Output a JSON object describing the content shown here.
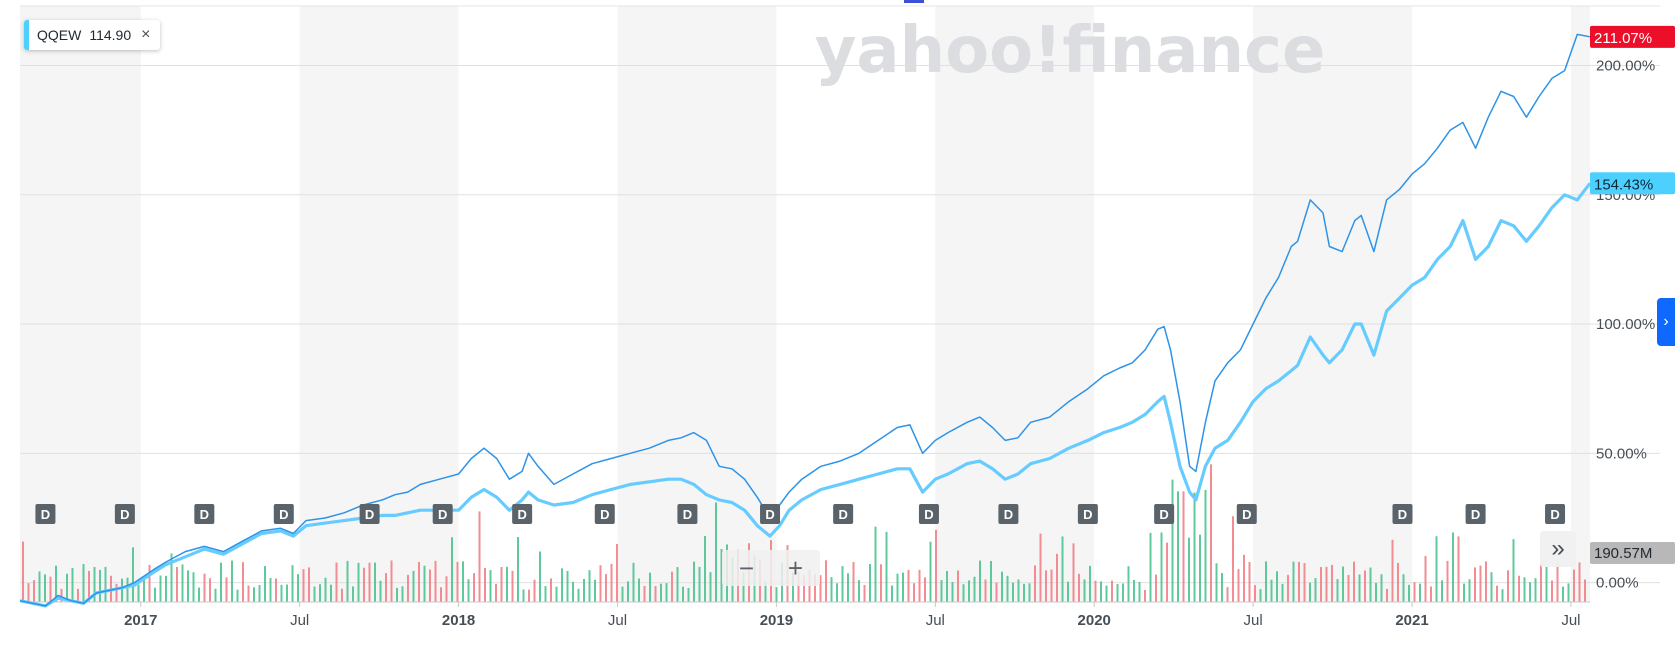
{
  "legend": {
    "symbol": "QQEW",
    "value": "114.90",
    "close_glyph": "×"
  },
  "watermark": "yahoo!finance",
  "colors": {
    "series_primary": "#2d93e8",
    "series_secondary": "#66ccff",
    "badge_primary": "#eb0f29",
    "badge_secondary": "#4ed0ff",
    "vol_up": "#43c08a",
    "vol_down": "#f07a80",
    "shade": "#f5f5f5",
    "dividend_badge": "#5b636a"
  },
  "controls": {
    "zoom_out": "−",
    "zoom_in": "+",
    "next_panel": "›",
    "expand": "»"
  },
  "chart_data": {
    "type": "line",
    "y_tick_labels": [
      "0.00%",
      "50.00%",
      "100.00%",
      "150.00%",
      "200.00%"
    ],
    "y_ticks": [
      0,
      50,
      100,
      150,
      200
    ],
    "ylim": [
      -7.5,
      223
    ],
    "x_tick_labels": [
      {
        "label": "2017",
        "t": 2016.92,
        "bold": true
      },
      {
        "label": "Jul",
        "t": 2017.42,
        "bold": false
      },
      {
        "label": "2018",
        "t": 2017.92,
        "bold": true
      },
      {
        "label": "Jul",
        "t": 2018.42,
        "bold": false
      },
      {
        "label": "2019",
        "t": 2018.92,
        "bold": true
      },
      {
        "label": "Jul",
        "t": 2019.42,
        "bold": false
      },
      {
        "label": "2020",
        "t": 2019.92,
        "bold": true
      },
      {
        "label": "Jul",
        "t": 2020.42,
        "bold": false
      },
      {
        "label": "2021",
        "t": 2020.92,
        "bold": true
      },
      {
        "label": "Jul",
        "t": 2021.42,
        "bold": false
      }
    ],
    "xlim": [
      2016.54,
      2021.48
    ],
    "grid": true,
    "last_value_badges": [
      {
        "series": "primary",
        "label": "211.07%"
      },
      {
        "series": "secondary",
        "label": "154.43%"
      }
    ],
    "volume_badge": "190.57M",
    "dividend_marker_label": "D",
    "dividend_markers": [
      2016.62,
      2016.87,
      2017.12,
      2017.37,
      2017.64,
      2017.87,
      2018.12,
      2018.38,
      2018.64,
      2018.9,
      2019.13,
      2019.4,
      2019.65,
      2019.9,
      2020.14,
      2020.4,
      2020.89,
      2021.12,
      2021.37
    ],
    "series": [
      {
        "id": "primary",
        "points": [
          [
            2016.54,
            -7
          ],
          [
            2016.58,
            -8
          ],
          [
            2016.62,
            -9
          ],
          [
            2016.66,
            -5
          ],
          [
            2016.7,
            -7
          ],
          [
            2016.74,
            -8
          ],
          [
            2016.78,
            -4
          ],
          [
            2016.82,
            -3
          ],
          [
            2016.86,
            -2
          ],
          [
            2016.9,
            0
          ],
          [
            2016.96,
            5
          ],
          [
            2017.0,
            8
          ],
          [
            2017.06,
            12
          ],
          [
            2017.12,
            14
          ],
          [
            2017.18,
            12
          ],
          [
            2017.24,
            16
          ],
          [
            2017.3,
            20
          ],
          [
            2017.36,
            21
          ],
          [
            2017.4,
            19
          ],
          [
            2017.44,
            24
          ],
          [
            2017.5,
            25
          ],
          [
            2017.56,
            27
          ],
          [
            2017.62,
            30
          ],
          [
            2017.68,
            32
          ],
          [
            2017.72,
            34
          ],
          [
            2017.76,
            35
          ],
          [
            2017.8,
            38
          ],
          [
            2017.86,
            40
          ],
          [
            2017.92,
            42
          ],
          [
            2017.96,
            48
          ],
          [
            2018.0,
            52
          ],
          [
            2018.04,
            48
          ],
          [
            2018.08,
            40
          ],
          [
            2018.12,
            43
          ],
          [
            2018.14,
            50
          ],
          [
            2018.17,
            45
          ],
          [
            2018.22,
            38
          ],
          [
            2018.28,
            42
          ],
          [
            2018.34,
            46
          ],
          [
            2018.4,
            48
          ],
          [
            2018.46,
            50
          ],
          [
            2018.52,
            52
          ],
          [
            2018.58,
            55
          ],
          [
            2018.62,
            56
          ],
          [
            2018.66,
            58
          ],
          [
            2018.7,
            55
          ],
          [
            2018.74,
            45
          ],
          [
            2018.78,
            44
          ],
          [
            2018.82,
            40
          ],
          [
            2018.86,
            33
          ],
          [
            2018.9,
            25
          ],
          [
            2018.93,
            30
          ],
          [
            2018.96,
            35
          ],
          [
            2019.0,
            40
          ],
          [
            2019.06,
            45
          ],
          [
            2019.12,
            47
          ],
          [
            2019.18,
            50
          ],
          [
            2019.24,
            55
          ],
          [
            2019.3,
            60
          ],
          [
            2019.34,
            61
          ],
          [
            2019.38,
            50
          ],
          [
            2019.42,
            55
          ],
          [
            2019.46,
            58
          ],
          [
            2019.52,
            62
          ],
          [
            2019.56,
            64
          ],
          [
            2019.6,
            60
          ],
          [
            2019.64,
            55
          ],
          [
            2019.68,
            56
          ],
          [
            2019.72,
            62
          ],
          [
            2019.78,
            64
          ],
          [
            2019.84,
            70
          ],
          [
            2019.9,
            75
          ],
          [
            2019.95,
            80
          ],
          [
            2020.0,
            83
          ],
          [
            2020.04,
            85
          ],
          [
            2020.08,
            90
          ],
          [
            2020.12,
            98
          ],
          [
            2020.14,
            99
          ],
          [
            2020.16,
            90
          ],
          [
            2020.19,
            70
          ],
          [
            2020.22,
            45
          ],
          [
            2020.24,
            43
          ],
          [
            2020.27,
            62
          ],
          [
            2020.3,
            78
          ],
          [
            2020.34,
            85
          ],
          [
            2020.38,
            90
          ],
          [
            2020.42,
            100
          ],
          [
            2020.46,
            110
          ],
          [
            2020.5,
            118
          ],
          [
            2020.54,
            130
          ],
          [
            2020.56,
            132
          ],
          [
            2020.6,
            148
          ],
          [
            2020.64,
            143
          ],
          [
            2020.66,
            130
          ],
          [
            2020.7,
            128
          ],
          [
            2020.74,
            140
          ],
          [
            2020.76,
            142
          ],
          [
            2020.8,
            128
          ],
          [
            2020.84,
            148
          ],
          [
            2020.88,
            152
          ],
          [
            2020.92,
            158
          ],
          [
            2020.96,
            162
          ],
          [
            2021.0,
            168
          ],
          [
            2021.04,
            175
          ],
          [
            2021.08,
            178
          ],
          [
            2021.12,
            168
          ],
          [
            2021.16,
            180
          ],
          [
            2021.2,
            190
          ],
          [
            2021.24,
            188
          ],
          [
            2021.28,
            180
          ],
          [
            2021.32,
            188
          ],
          [
            2021.36,
            195
          ],
          [
            2021.4,
            198
          ],
          [
            2021.44,
            212
          ],
          [
            2021.48,
            211.07
          ]
        ]
      },
      {
        "id": "secondary",
        "points": [
          [
            2016.54,
            -7
          ],
          [
            2016.58,
            -8
          ],
          [
            2016.62,
            -9
          ],
          [
            2016.66,
            -6
          ],
          [
            2016.7,
            -7
          ],
          [
            2016.74,
            -8
          ],
          [
            2016.78,
            -4
          ],
          [
            2016.82,
            -3
          ],
          [
            2016.86,
            -2
          ],
          [
            2016.9,
            -1
          ],
          [
            2016.96,
            4
          ],
          [
            2017.0,
            7
          ],
          [
            2017.06,
            10
          ],
          [
            2017.12,
            13
          ],
          [
            2017.18,
            11
          ],
          [
            2017.24,
            15
          ],
          [
            2017.3,
            19
          ],
          [
            2017.36,
            20
          ],
          [
            2017.4,
            18
          ],
          [
            2017.44,
            22
          ],
          [
            2017.5,
            23
          ],
          [
            2017.56,
            24
          ],
          [
            2017.62,
            25
          ],
          [
            2017.68,
            26
          ],
          [
            2017.72,
            26
          ],
          [
            2017.76,
            27
          ],
          [
            2017.8,
            28
          ],
          [
            2017.86,
            28
          ],
          [
            2017.92,
            28
          ],
          [
            2017.96,
            33
          ],
          [
            2018.0,
            36
          ],
          [
            2018.04,
            33
          ],
          [
            2018.08,
            28
          ],
          [
            2018.12,
            32
          ],
          [
            2018.14,
            35
          ],
          [
            2018.17,
            32
          ],
          [
            2018.22,
            30
          ],
          [
            2018.28,
            31
          ],
          [
            2018.34,
            34
          ],
          [
            2018.4,
            36
          ],
          [
            2018.46,
            38
          ],
          [
            2018.52,
            39
          ],
          [
            2018.58,
            40
          ],
          [
            2018.62,
            40
          ],
          [
            2018.66,
            38
          ],
          [
            2018.7,
            34
          ],
          [
            2018.74,
            32
          ],
          [
            2018.78,
            31
          ],
          [
            2018.82,
            28
          ],
          [
            2018.86,
            22
          ],
          [
            2018.9,
            18
          ],
          [
            2018.93,
            22
          ],
          [
            2018.96,
            28
          ],
          [
            2019.0,
            32
          ],
          [
            2019.06,
            36
          ],
          [
            2019.12,
            38
          ],
          [
            2019.18,
            40
          ],
          [
            2019.24,
            42
          ],
          [
            2019.3,
            44
          ],
          [
            2019.34,
            44
          ],
          [
            2019.38,
            35
          ],
          [
            2019.42,
            40
          ],
          [
            2019.46,
            42
          ],
          [
            2019.52,
            46
          ],
          [
            2019.56,
            47
          ],
          [
            2019.6,
            44
          ],
          [
            2019.64,
            40
          ],
          [
            2019.68,
            42
          ],
          [
            2019.72,
            46
          ],
          [
            2019.78,
            48
          ],
          [
            2019.84,
            52
          ],
          [
            2019.9,
            55
          ],
          [
            2019.95,
            58
          ],
          [
            2020.0,
            60
          ],
          [
            2020.04,
            62
          ],
          [
            2020.08,
            65
          ],
          [
            2020.12,
            70
          ],
          [
            2020.14,
            72
          ],
          [
            2020.16,
            62
          ],
          [
            2020.19,
            45
          ],
          [
            2020.22,
            35
          ],
          [
            2020.24,
            32
          ],
          [
            2020.27,
            45
          ],
          [
            2020.3,
            52
          ],
          [
            2020.34,
            55
          ],
          [
            2020.38,
            62
          ],
          [
            2020.42,
            70
          ],
          [
            2020.46,
            75
          ],
          [
            2020.5,
            78
          ],
          [
            2020.54,
            82
          ],
          [
            2020.56,
            84
          ],
          [
            2020.6,
            95
          ],
          [
            2020.64,
            88
          ],
          [
            2020.66,
            85
          ],
          [
            2020.7,
            90
          ],
          [
            2020.74,
            100
          ],
          [
            2020.76,
            100
          ],
          [
            2020.8,
            88
          ],
          [
            2020.84,
            105
          ],
          [
            2020.88,
            110
          ],
          [
            2020.92,
            115
          ],
          [
            2020.96,
            118
          ],
          [
            2021.0,
            125
          ],
          [
            2021.04,
            130
          ],
          [
            2021.08,
            140
          ],
          [
            2021.12,
            125
          ],
          [
            2021.16,
            130
          ],
          [
            2021.2,
            140
          ],
          [
            2021.24,
            138
          ],
          [
            2021.28,
            132
          ],
          [
            2021.32,
            138
          ],
          [
            2021.36,
            145
          ],
          [
            2021.4,
            150
          ],
          [
            2021.44,
            148
          ],
          [
            2021.48,
            154.43
          ]
        ]
      }
    ]
  }
}
